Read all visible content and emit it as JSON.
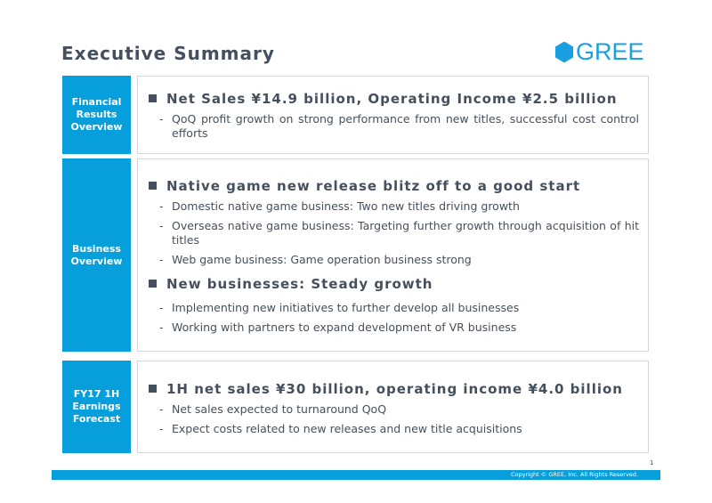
{
  "title": "Executive Summary",
  "logo": "GREE",
  "sections": [
    {
      "label": "Financial Results Overview",
      "heading": "Net Sales ¥14.9 billion, Operating Income ¥2.5 billion",
      "items": [
        "QoQ profit growth on strong performance from new titles, successful cost control efforts"
      ]
    },
    {
      "label": "Business Overview",
      "heading": "Native game new release blitz off to a good start",
      "items": [
        "Domestic native game business: Two new titles driving growth",
        "Overseas native game business: Targeting further growth through acquisition of hit titles",
        "Web game business: Game operation business strong"
      ],
      "heading2": "New businesses: Steady growth",
      "items2": [
        "Implementing new initiatives to further develop all businesses",
        "Working with partners to expand development of VR business"
      ]
    },
    {
      "label": "FY17 1H Earnings Forecast",
      "heading": "1H net sales ¥30 billion, operating income ¥4.0 billion",
      "items": [
        "Net sales expected to turnaround QoQ",
        "Expect costs related to new releases and new title acquisitions"
      ]
    }
  ],
  "page_number": "1",
  "copyright": "Copyright © GREE, Inc. All Rights Reserved."
}
